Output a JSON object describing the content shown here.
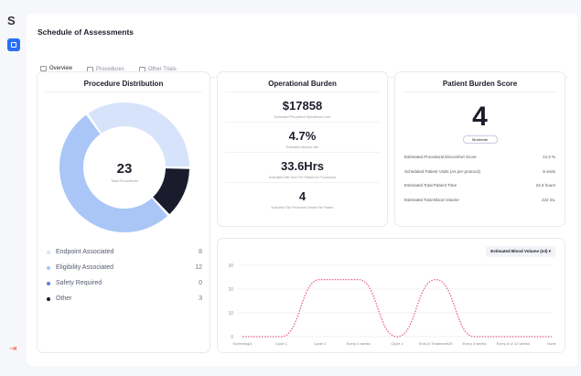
{
  "app": {
    "logo": "S",
    "page_title": "Schedule of Assessments"
  },
  "tabs": [
    {
      "label": "Overview",
      "active": true
    },
    {
      "label": "Procedures"
    },
    {
      "label": "Other Trials"
    }
  ],
  "procedure_distribution": {
    "title": "Procedure Distribution",
    "total": "23",
    "total_label": "Total Procedures",
    "items": [
      {
        "label": "Endpoint Associated",
        "value": 8,
        "color": "#d6e3fb"
      },
      {
        "label": "Eligibility Associated",
        "value": 12,
        "color": "#a9c6f7"
      },
      {
        "label": "Safety Required",
        "value": 0,
        "color": "#5b7fe0"
      },
      {
        "label": "Other",
        "value": 3,
        "color": "#1a1c2e"
      }
    ]
  },
  "operational_burden": {
    "title": "Operational Burden",
    "metrics": [
      {
        "value": "$17858",
        "label": "Estimated Per-patient Operational Cost"
      },
      {
        "value": "4.7%",
        "label": "Estimated dropout rate"
      },
      {
        "value": "33.6Hrs",
        "label": "Estimated Site Time Per Patient for Procedures"
      },
      {
        "value": "4",
        "label": "Indicative Site Personnel Needs Per Patient"
      }
    ]
  },
  "patient_burden": {
    "title": "Patient Burden Score",
    "score": "4",
    "level": "Moderate",
    "rows": [
      {
        "label": "Estimated Procedural Discomfort Score",
        "value": "14.3 %"
      },
      {
        "label": "Scheduled Patient Visits (As per protocol)",
        "value": "9 visits"
      },
      {
        "label": "Estimated Total Patient Time",
        "value": "24.6 hours"
      },
      {
        "label": "Estimated Total Blood Volume",
        "value": "222 mL"
      }
    ]
  },
  "chart_data": {
    "type": "line",
    "dropdown": "Estimated Blood Volume (ml)",
    "categories": [
      "Screening/1",
      "Cycle 1",
      "Cycle 2",
      "Every 4 weeks",
      "Cycle 2",
      "End-of-Treatment/25",
      "Every 4 weeks",
      "Every 8 or 12 weeks",
      "None"
    ],
    "values": [
      0,
      0,
      24,
      24,
      0,
      24,
      0,
      0,
      0
    ],
    "ylim": [
      0,
      30
    ],
    "yticks": [
      "0",
      "10",
      "20",
      "30"
    ],
    "color": "#e8657f",
    "style": "dotted",
    "grid": true
  }
}
